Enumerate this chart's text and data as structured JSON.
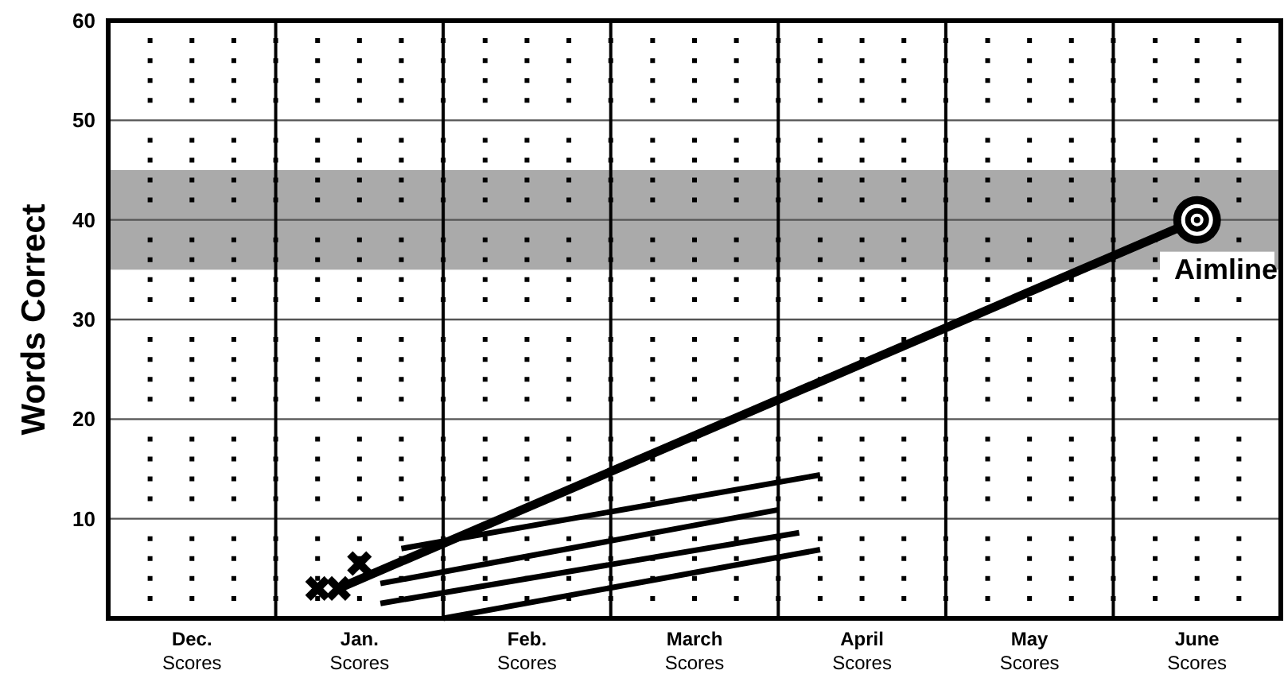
{
  "chart_data": {
    "type": "line",
    "ylabel": "Words Correct",
    "ylim": [
      0,
      60
    ],
    "categories": [
      null,
      null,
      null,
      "Dec.\nScores",
      null,
      null,
      null,
      null,
      null,
      null,
      null,
      "Jan.\nScores",
      null,
      null,
      null,
      null,
      null,
      null,
      null,
      "Feb.\nScores",
      null,
      null,
      null,
      null,
      null,
      null,
      null,
      "March\nScores",
      null,
      null,
      null,
      null,
      null,
      null,
      null,
      "April\nScores",
      null,
      null,
      null,
      null,
      null,
      null,
      null,
      "May\nScores",
      null,
      null,
      null,
      null,
      null,
      null,
      null,
      "June\nScores",
      null,
      null,
      null,
      null
    ],
    "yticks": [
      {
        "value": 2,
        "label": null
      },
      {
        "value": 4,
        "label": null
      },
      {
        "value": 6,
        "label": null
      },
      {
        "value": 8,
        "label": null
      },
      10,
      {
        "value": 12,
        "label": null
      },
      {
        "value": 14,
        "label": null
      },
      {
        "value": 16,
        "label": null
      },
      {
        "value": 18,
        "label": null
      },
      20,
      {
        "value": 22,
        "label": null
      },
      {
        "value": 24,
        "label": null
      },
      {
        "value": 26,
        "label": null
      },
      {
        "value": 28,
        "label": null
      },
      30,
      {
        "value": 32,
        "label": null
      },
      {
        "value": 34,
        "label": null
      },
      {
        "value": 36,
        "label": null
      },
      {
        "value": 38,
        "label": null
      },
      40,
      {
        "value": 42,
        "label": null
      },
      {
        "value": 44,
        "label": null
      },
      {
        "value": 46,
        "label": null
      },
      {
        "value": 48,
        "label": null
      },
      50,
      {
        "value": 52,
        "label": null
      },
      {
        "value": 54,
        "label": null
      },
      {
        "value": 56,
        "label": null
      },
      {
        "value": 58,
        "label": null
      },
      60
    ],
    "grid": true,
    "bands": [
      {
        "axis": "y",
        "from": 35,
        "to": 45,
        "color": "#aaaaaa"
      }
    ],
    "series": [
      {
        "type": "scatter",
        "marker": "cross",
        "color": "#000000",
        "values": [
          null,
          null,
          null,
          null,
          null,
          null,
          null,
          null,
          null,
          3,
          3,
          5.5,
          null,
          null,
          null,
          null,
          null,
          null,
          null,
          null,
          null,
          null,
          null,
          null,
          null,
          null,
          null,
          null,
          null,
          null,
          null,
          null,
          null,
          null,
          null,
          null,
          null,
          null,
          null,
          null,
          null,
          null,
          null,
          null,
          null,
          null,
          null,
          null,
          null,
          null,
          null,
          null,
          null,
          null,
          null,
          null
        ]
      },
      {
        "name": "Aimline",
        "color": "#000000",
        "values": [
          null,
          null,
          null,
          null,
          null,
          null,
          null,
          null,
          null,
          null,
          3,
          null,
          null,
          null,
          null,
          null,
          null,
          null,
          null,
          null,
          null,
          null,
          null,
          null,
          null,
          null,
          null,
          null,
          null,
          null,
          null,
          null,
          null,
          null,
          null,
          null,
          null,
          null,
          null,
          null,
          null,
          null,
          null,
          null,
          null,
          null,
          null,
          null,
          null,
          null,
          null,
          40,
          null,
          null,
          null,
          null
        ]
      },
      {
        "color": "#000000",
        "values": [
          null,
          null,
          null,
          null,
          null,
          null,
          null,
          null,
          null,
          null,
          null,
          null,
          null,
          7,
          null,
          null,
          null,
          null,
          null,
          null,
          null,
          null,
          null,
          null,
          null,
          null,
          null,
          null,
          null,
          null,
          null,
          null,
          null,
          14.4,
          null,
          null,
          null,
          null,
          null,
          null,
          null,
          null,
          null,
          null,
          null,
          null,
          null,
          null,
          null,
          null,
          null,
          null,
          null,
          null,
          null,
          null
        ]
      },
      {
        "color": "#000000",
        "values": [
          null,
          null,
          null,
          null,
          null,
          null,
          null,
          null,
          null,
          null,
          null,
          null,
          3.5,
          null,
          null,
          null,
          null,
          null,
          null,
          null,
          null,
          null,
          null,
          null,
          null,
          null,
          null,
          null,
          null,
          null,
          null,
          10.9,
          null,
          null,
          null,
          null,
          null,
          null,
          null,
          null,
          null,
          null,
          null,
          null,
          null,
          null,
          null,
          null,
          null,
          null,
          null,
          null,
          null,
          null,
          null,
          null
        ]
      },
      {
        "color": "#000000",
        "values": [
          null,
          null,
          null,
          null,
          null,
          null,
          null,
          null,
          null,
          null,
          null,
          null,
          1.5,
          null,
          null,
          null,
          null,
          null,
          null,
          null,
          null,
          null,
          null,
          null,
          null,
          null,
          null,
          null,
          null,
          null,
          null,
          null,
          8.6,
          null,
          null,
          null,
          null,
          null,
          null,
          null,
          null,
          null,
          null,
          null,
          null,
          null,
          null,
          null,
          null,
          null,
          null,
          null,
          null,
          null,
          null,
          null
        ]
      },
      {
        "color": "#000000",
        "values": [
          null,
          null,
          null,
          null,
          null,
          null,
          null,
          null,
          null,
          null,
          null,
          null,
          null,
          null,
          null,
          0,
          null,
          null,
          null,
          null,
          null,
          null,
          null,
          null,
          null,
          null,
          null,
          null,
          null,
          null,
          null,
          null,
          null,
          6.9,
          null,
          null,
          null,
          null,
          null,
          null,
          null,
          null,
          null,
          null,
          null,
          null,
          null,
          null,
          null,
          null,
          null,
          null,
          null,
          null,
          null,
          null
        ]
      }
    ]
  }
}
